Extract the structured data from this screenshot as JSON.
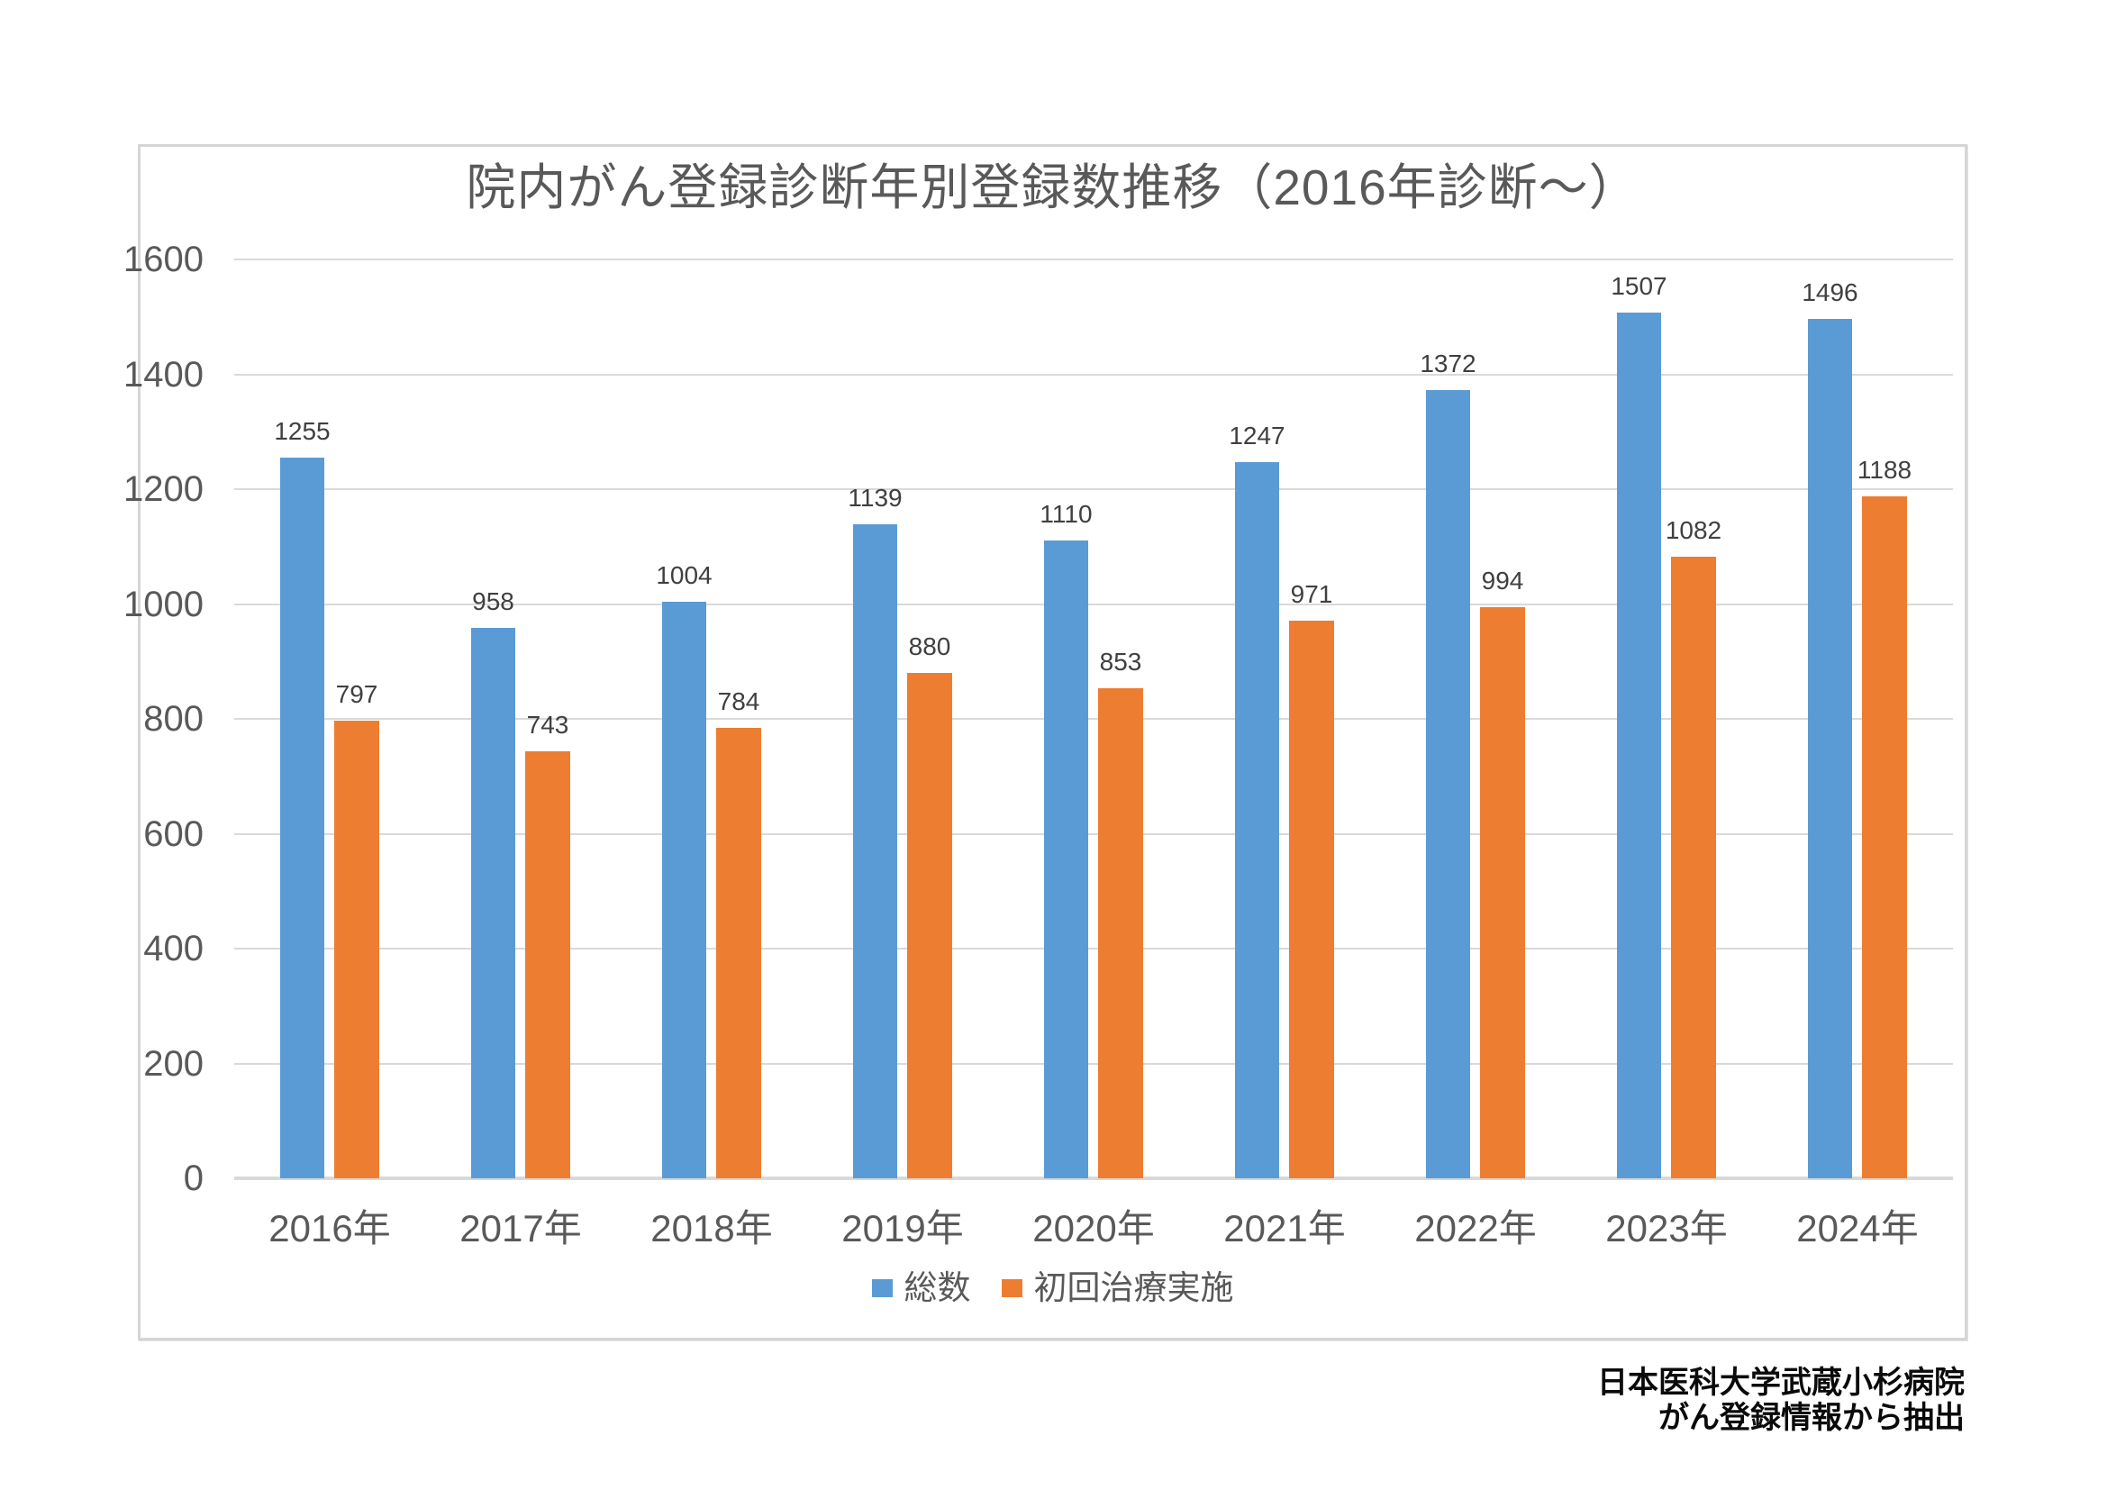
{
  "chart_data": {
    "type": "bar",
    "title": "院内がん登録診断年別登録数推移（2016年診断～）",
    "categories": [
      "2016年",
      "2017年",
      "2018年",
      "2019年",
      "2020年",
      "2021年",
      "2022年",
      "2023年",
      "2024年"
    ],
    "series": [
      {
        "name": "総数",
        "color": "#5B9BD5",
        "values": [
          1255,
          958,
          1004,
          1139,
          1110,
          1247,
          1372,
          1507,
          1496
        ]
      },
      {
        "name": "初回治療実施",
        "color": "#ED7D31",
        "values": [
          797,
          743,
          784,
          880,
          853,
          971,
          994,
          1082,
          1188
        ]
      }
    ],
    "xlabel": "",
    "ylabel": "",
    "ylim": [
      0,
      1600
    ],
    "ytick_interval": 200,
    "yticks": [
      0,
      200,
      400,
      600,
      800,
      1000,
      1200,
      1400,
      1600
    ],
    "grid": true,
    "gridline_color": "#D9D9D9",
    "data_labels": true,
    "legend_position": "bottom",
    "title_color": "#595959",
    "axis_text_color": "#595959",
    "data_label_color": "#404040"
  },
  "footer": {
    "line1": "日本医科大学武蔵小杉病院",
    "line2": "がん登録情報から抽出"
  }
}
